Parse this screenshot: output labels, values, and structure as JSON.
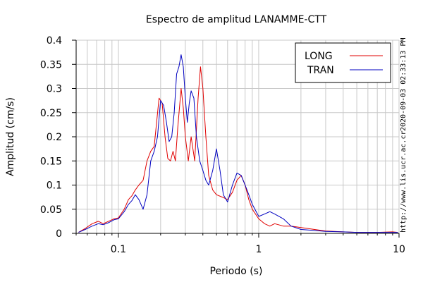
{
  "chart_data": {
    "type": "line",
    "title": "Espectro de amplitud LANAMME-CTT",
    "xlabel": "Periodo (s)",
    "ylabel": "Amplitud (cm/s)",
    "x_scale": "log",
    "xlim": [
      0.05,
      10
    ],
    "ylim": [
      0,
      0.4
    ],
    "grid": true,
    "legend_position": "top-right",
    "x_ticks": [
      {
        "value": 0.1,
        "label": "0.1"
      },
      {
        "value": 1,
        "label": "1"
      },
      {
        "value": 10,
        "label": "10"
      }
    ],
    "y_ticks": [
      {
        "value": 0,
        "label": "0"
      },
      {
        "value": 0.05,
        "label": "0.05"
      },
      {
        "value": 0.1,
        "label": "0.1"
      },
      {
        "value": 0.15,
        "label": "0.15"
      },
      {
        "value": 0.2,
        "label": "0.2"
      },
      {
        "value": 0.25,
        "label": "0.25"
      },
      {
        "value": 0.3,
        "label": "0.3"
      },
      {
        "value": 0.35,
        "label": "0.35"
      },
      {
        "value": 0.4,
        "label": "0.4"
      }
    ],
    "series": [
      {
        "name": "LONG",
        "color": "#e00000",
        "points": [
          [
            0.052,
            0.002
          ],
          [
            0.058,
            0.01
          ],
          [
            0.065,
            0.02
          ],
          [
            0.072,
            0.025
          ],
          [
            0.078,
            0.02
          ],
          [
            0.085,
            0.025
          ],
          [
            0.093,
            0.03
          ],
          [
            0.1,
            0.032
          ],
          [
            0.11,
            0.05
          ],
          [
            0.118,
            0.07
          ],
          [
            0.125,
            0.078
          ],
          [
            0.132,
            0.09
          ],
          [
            0.14,
            0.1
          ],
          [
            0.15,
            0.11
          ],
          [
            0.16,
            0.15
          ],
          [
            0.17,
            0.17
          ],
          [
            0.18,
            0.18
          ],
          [
            0.195,
            0.28
          ],
          [
            0.205,
            0.27
          ],
          [
            0.215,
            0.2
          ],
          [
            0.225,
            0.155
          ],
          [
            0.235,
            0.15
          ],
          [
            0.245,
            0.17
          ],
          [
            0.255,
            0.15
          ],
          [
            0.265,
            0.22
          ],
          [
            0.28,
            0.3
          ],
          [
            0.29,
            0.26
          ],
          [
            0.3,
            0.2
          ],
          [
            0.315,
            0.15
          ],
          [
            0.33,
            0.2
          ],
          [
            0.35,
            0.15
          ],
          [
            0.37,
            0.28
          ],
          [
            0.385,
            0.345
          ],
          [
            0.4,
            0.3
          ],
          [
            0.42,
            0.2
          ],
          [
            0.44,
            0.12
          ],
          [
            0.47,
            0.09
          ],
          [
            0.5,
            0.08
          ],
          [
            0.55,
            0.075
          ],
          [
            0.6,
            0.07
          ],
          [
            0.65,
            0.085
          ],
          [
            0.7,
            0.11
          ],
          [
            0.75,
            0.12
          ],
          [
            0.8,
            0.1
          ],
          [
            0.85,
            0.07
          ],
          [
            0.9,
            0.05
          ],
          [
            1.0,
            0.03
          ],
          [
            1.1,
            0.02
          ],
          [
            1.2,
            0.015
          ],
          [
            1.3,
            0.02
          ],
          [
            1.5,
            0.015
          ],
          [
            1.7,
            0.015
          ],
          [
            2.0,
            0.012
          ],
          [
            2.5,
            0.008
          ],
          [
            3.0,
            0.005
          ],
          [
            4.0,
            0.003
          ],
          [
            5.0,
            0.002
          ],
          [
            7.0,
            0.002
          ],
          [
            9.0,
            0.003
          ],
          [
            9.8,
            0.002
          ]
        ]
      },
      {
        "name": "TRAN",
        "color": "#0000c0",
        "points": [
          [
            0.052,
            0.002
          ],
          [
            0.058,
            0.008
          ],
          [
            0.065,
            0.015
          ],
          [
            0.072,
            0.02
          ],
          [
            0.078,
            0.018
          ],
          [
            0.085,
            0.022
          ],
          [
            0.093,
            0.028
          ],
          [
            0.1,
            0.03
          ],
          [
            0.11,
            0.045
          ],
          [
            0.118,
            0.06
          ],
          [
            0.125,
            0.068
          ],
          [
            0.132,
            0.08
          ],
          [
            0.14,
            0.07
          ],
          [
            0.15,
            0.05
          ],
          [
            0.16,
            0.08
          ],
          [
            0.17,
            0.15
          ],
          [
            0.18,
            0.17
          ],
          [
            0.19,
            0.2
          ],
          [
            0.2,
            0.275
          ],
          [
            0.21,
            0.265
          ],
          [
            0.22,
            0.23
          ],
          [
            0.23,
            0.19
          ],
          [
            0.24,
            0.2
          ],
          [
            0.25,
            0.25
          ],
          [
            0.26,
            0.33
          ],
          [
            0.27,
            0.345
          ],
          [
            0.28,
            0.37
          ],
          [
            0.29,
            0.345
          ],
          [
            0.3,
            0.28
          ],
          [
            0.31,
            0.23
          ],
          [
            0.32,
            0.27
          ],
          [
            0.33,
            0.295
          ],
          [
            0.345,
            0.28
          ],
          [
            0.36,
            0.2
          ],
          [
            0.38,
            0.15
          ],
          [
            0.4,
            0.13
          ],
          [
            0.42,
            0.11
          ],
          [
            0.44,
            0.1
          ],
          [
            0.47,
            0.13
          ],
          [
            0.5,
            0.175
          ],
          [
            0.53,
            0.13
          ],
          [
            0.56,
            0.08
          ],
          [
            0.6,
            0.065
          ],
          [
            0.65,
            0.1
          ],
          [
            0.7,
            0.125
          ],
          [
            0.75,
            0.12
          ],
          [
            0.8,
            0.1
          ],
          [
            0.85,
            0.08
          ],
          [
            0.9,
            0.06
          ],
          [
            1.0,
            0.035
          ],
          [
            1.1,
            0.04
          ],
          [
            1.2,
            0.045
          ],
          [
            1.3,
            0.04
          ],
          [
            1.5,
            0.03
          ],
          [
            1.7,
            0.015
          ],
          [
            2.0,
            0.008
          ],
          [
            2.5,
            0.006
          ],
          [
            3.0,
            0.004
          ],
          [
            4.0,
            0.003
          ],
          [
            5.0,
            0.002
          ],
          [
            7.0,
            0.002
          ],
          [
            9.0,
            0.002
          ],
          [
            9.8,
            0.002
          ]
        ]
      }
    ]
  },
  "side_text": {
    "timestamp": "2020-09-03 02:33:13 PM",
    "url": "http://www.lis.ucr.ac.cr"
  }
}
